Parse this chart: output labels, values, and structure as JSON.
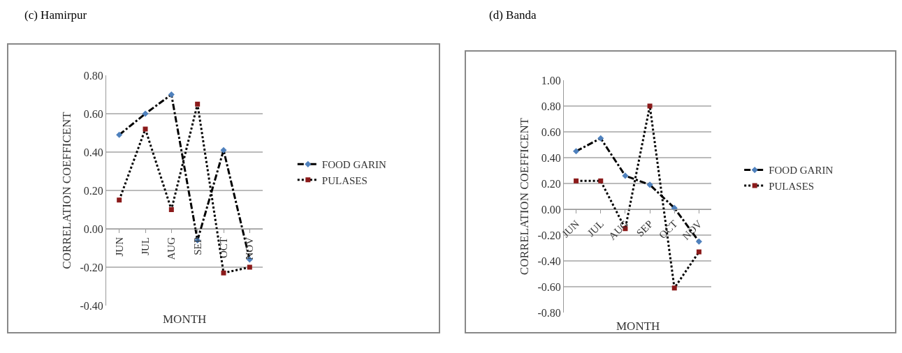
{
  "chart_data": [
    {
      "type": "line",
      "title": "(c) Hamirpur",
      "xlabel": "MONTH",
      "ylabel": "CORRELATION COEFFICENT",
      "categories": [
        "JUN",
        "JUL",
        "AUG",
        "SEP",
        "OCT",
        "NOV"
      ],
      "ylim": [
        -0.4,
        0.8
      ],
      "yticks": [
        {
          "value": -0.4,
          "label": "-0.40"
        },
        {
          "value": -0.2,
          "label": "-0.20"
        },
        {
          "value": 0,
          "label": "0.00"
        },
        {
          "value": 0.2,
          "label": "0.20"
        },
        {
          "value": 0.4,
          "label": "0.40"
        },
        {
          "value": 0.6,
          "label": "0.60"
        },
        {
          "value": 0.8,
          "label": "0.80"
        }
      ],
      "grid": "y",
      "legend": "right",
      "series": [
        {
          "name": "FOOD GARIN",
          "color": "#4f81bd",
          "marker": "diamond",
          "line_style": "dashed",
          "values": [
            0.49,
            0.6,
            0.7,
            -0.06,
            0.41,
            -0.16
          ]
        },
        {
          "name": "PULASES",
          "color": "#8b1a1a",
          "marker": "square",
          "line_style": "dotted",
          "values": [
            0.15,
            0.52,
            0.1,
            0.65,
            -0.23,
            -0.2
          ]
        }
      ]
    },
    {
      "type": "line",
      "title": "(d) Banda",
      "xlabel": "MONTH",
      "ylabel": "CORRELATION COEFFICENT",
      "categories": [
        "JUN",
        "JUL",
        "AUG",
        "SEP",
        "OCT",
        "NOV"
      ],
      "ylim": [
        -0.8,
        1.0
      ],
      "yticks": [
        {
          "value": -0.8,
          "label": "-0.80"
        },
        {
          "value": -0.6,
          "label": "-0.60"
        },
        {
          "value": -0.4,
          "label": "-0.40"
        },
        {
          "value": -0.2,
          "label": "-0.20"
        },
        {
          "value": 0,
          "label": "0.00"
        },
        {
          "value": 0.2,
          "label": "0.20"
        },
        {
          "value": 0.4,
          "label": "0.40"
        },
        {
          "value": 0.6,
          "label": "0.60"
        },
        {
          "value": 0.8,
          "label": "0.80"
        },
        {
          "value": 1.0,
          "label": "1.00"
        }
      ],
      "grid": "y",
      "legend": "right",
      "series": [
        {
          "name": "FOOD GARIN",
          "color": "#4f81bd",
          "marker": "diamond",
          "line_style": "dashed",
          "values": [
            0.45,
            0.55,
            0.26,
            0.19,
            0.01,
            -0.25
          ]
        },
        {
          "name": "PULASES",
          "color": "#8b1a1a",
          "marker": "square",
          "line_style": "dotted",
          "values": [
            0.22,
            0.22,
            -0.15,
            0.8,
            -0.61,
            -0.33
          ]
        }
      ]
    }
  ]
}
